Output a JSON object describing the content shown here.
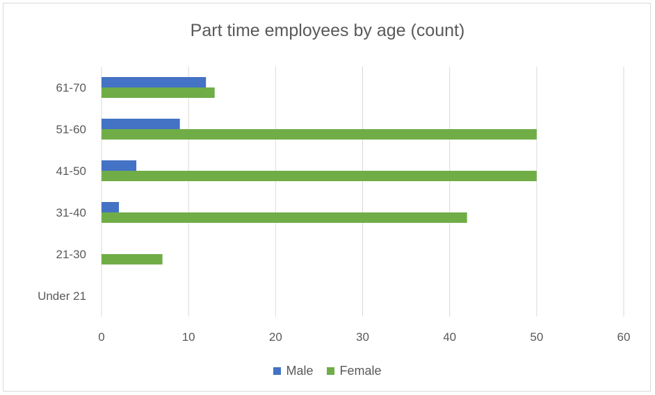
{
  "chart_data": {
    "type": "bar",
    "orientation": "horizontal",
    "title": "Part time employees by age (count)",
    "xlabel": "",
    "ylabel": "",
    "categories": [
      "Under 21",
      "21-30",
      "31-40",
      "41-50",
      "51-60",
      "61-70"
    ],
    "series": [
      {
        "name": "Male",
        "color": "#4472C4",
        "values": [
          0,
          0,
          2,
          4,
          9,
          12
        ]
      },
      {
        "name": "Female",
        "color": "#70AD47",
        "values": [
          0,
          7,
          42,
          50,
          50,
          13
        ]
      }
    ],
    "xlim": [
      0,
      60
    ],
    "xticks": [
      0,
      10,
      20,
      30,
      40,
      50,
      60
    ],
    "grid": true,
    "legend_position": "bottom"
  }
}
